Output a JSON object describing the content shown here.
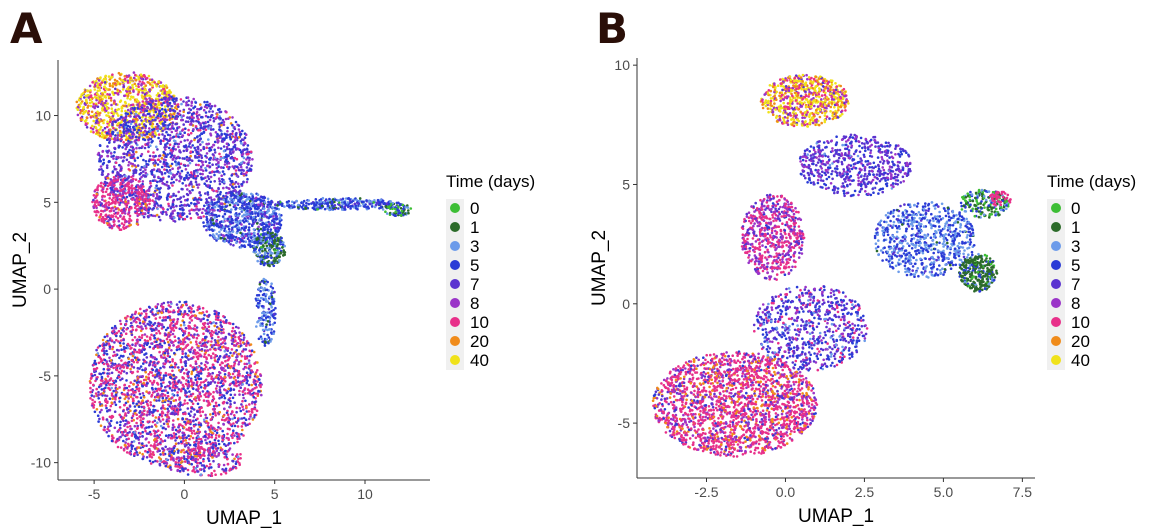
{
  "panels": {
    "a": {
      "label": "A"
    },
    "b": {
      "label": "B"
    }
  },
  "chart_data": [
    {
      "type": "scatter",
      "title": "",
      "xlabel": "UMAP_1",
      "ylabel": "UMAP_2",
      "xlim": [
        -7,
        13.6
      ],
      "ylim": [
        -11,
        13.2
      ],
      "xticks": [
        -5,
        0,
        5,
        10
      ],
      "yticks": [
        -10,
        -5,
        0,
        5,
        10
      ],
      "xtick_labels": [
        "-5",
        "0",
        "5",
        "10"
      ],
      "ytick_labels": [
        "-10",
        "-5",
        "0",
        "5",
        "10"
      ],
      "grid": false,
      "legend_title": "Time (days)",
      "legend_position": "right",
      "series": [
        {
          "name": "0",
          "color": "#3dbe35"
        },
        {
          "name": "1",
          "color": "#2c6b2a"
        },
        {
          "name": "3",
          "color": "#6c9bea"
        },
        {
          "name": "5",
          "color": "#2a3bd6"
        },
        {
          "name": "7",
          "color": "#5a33d0"
        },
        {
          "name": "8",
          "color": "#9a34c8"
        },
        {
          "name": "10",
          "color": "#e8308a"
        },
        {
          "name": "20",
          "color": "#f08b1a"
        },
        {
          "name": "40",
          "color": "#f0e21a"
        }
      ],
      "clusters": [
        {
          "cx": -0.5,
          "cy": -5.5,
          "rx": 4.8,
          "ry": 4.8,
          "n": 2600,
          "mix": [
            0,
            0,
            0.02,
            0.2,
            0.15,
            0.13,
            0.42,
            0.08,
            0
          ]
        },
        {
          "cx": 1.0,
          "cy": -9.8,
          "rx": 2.2,
          "ry": 1.0,
          "n": 200,
          "mix": [
            0,
            0,
            0.02,
            0.2,
            0.15,
            0.13,
            0.45,
            0.05,
            0
          ]
        },
        {
          "cx": -3.2,
          "cy": 10.5,
          "rx": 2.8,
          "ry": 2.0,
          "n": 900,
          "mix": [
            0,
            0,
            0,
            0,
            0.03,
            0.17,
            0.12,
            0.2,
            0.48
          ]
        },
        {
          "cx": -0.5,
          "cy": 7.5,
          "rx": 4.3,
          "ry": 3.6,
          "n": 1700,
          "mix": [
            0,
            0,
            0.05,
            0.3,
            0.3,
            0.25,
            0.07,
            0.03,
            0
          ]
        },
        {
          "cx": -3.5,
          "cy": 5.0,
          "rx": 1.6,
          "ry": 1.6,
          "n": 400,
          "mix": [
            0,
            0,
            0,
            0.05,
            0.1,
            0.2,
            0.6,
            0.05,
            0
          ]
        },
        {
          "cx": 3.2,
          "cy": 4.0,
          "rx": 2.2,
          "ry": 1.6,
          "n": 700,
          "mix": [
            0,
            0.03,
            0.25,
            0.55,
            0.1,
            0.07,
            0,
            0,
            0
          ]
        },
        {
          "cx": 4.7,
          "cy": 2.3,
          "rx": 0.9,
          "ry": 1.0,
          "n": 250,
          "mix": [
            0.05,
            0.45,
            0.2,
            0.3,
            0,
            0,
            0,
            0,
            0
          ]
        },
        {
          "cx": 8.5,
          "cy": 4.9,
          "rx": 3.5,
          "ry": 0.35,
          "n": 300,
          "mix": [
            0.03,
            0.05,
            0.25,
            0.6,
            0.07,
            0,
            0,
            0,
            0
          ]
        },
        {
          "cx": 11.8,
          "cy": 4.6,
          "rx": 0.8,
          "ry": 0.4,
          "n": 80,
          "mix": [
            0.35,
            0.2,
            0.2,
            0.25,
            0,
            0,
            0,
            0,
            0
          ]
        },
        {
          "cx": 4.5,
          "cy": -1.3,
          "rx": 0.6,
          "ry": 2.0,
          "n": 160,
          "mix": [
            0,
            0.05,
            0.35,
            0.55,
            0.05,
            0,
            0,
            0,
            0
          ]
        }
      ]
    },
    {
      "type": "scatter",
      "title": "",
      "xlabel": "UMAP_1",
      "ylabel": "UMAP_2",
      "xlim": [
        -4.7,
        7.9
      ],
      "ylim": [
        -7.3,
        10.3
      ],
      "xticks": [
        -2.5,
        0,
        2.5,
        5,
        7.5
      ],
      "yticks": [
        -5,
        0,
        5,
        10
      ],
      "xtick_labels": [
        "-2.5",
        "0.0",
        "2.5",
        "5.0",
        "7.5"
      ],
      "ytick_labels": [
        "-5",
        "0",
        "5",
        "10"
      ],
      "grid": false,
      "legend_title": "Time (days)",
      "legend_position": "right",
      "series": [
        {
          "name": "0",
          "color": "#3dbe35"
        },
        {
          "name": "1",
          "color": "#2c6b2a"
        },
        {
          "name": "3",
          "color": "#6c9bea"
        },
        {
          "name": "5",
          "color": "#2a3bd6"
        },
        {
          "name": "7",
          "color": "#5a33d0"
        },
        {
          "name": "8",
          "color": "#9a34c8"
        },
        {
          "name": "10",
          "color": "#e8308a"
        },
        {
          "name": "20",
          "color": "#f08b1a"
        },
        {
          "name": "40",
          "color": "#f0e21a"
        }
      ],
      "clusters": [
        {
          "cx": -1.6,
          "cy": -4.2,
          "rx": 2.6,
          "ry": 2.2,
          "n": 2000,
          "mix": [
            0,
            0,
            0,
            0.05,
            0.1,
            0.15,
            0.55,
            0.15,
            0
          ]
        },
        {
          "cx": 0.8,
          "cy": -1.0,
          "rx": 1.8,
          "ry": 1.8,
          "n": 700,
          "mix": [
            0,
            0,
            0.1,
            0.3,
            0.35,
            0.15,
            0.1,
            0,
            0
          ]
        },
        {
          "cx": -0.4,
          "cy": 2.8,
          "rx": 1.0,
          "ry": 1.8,
          "n": 600,
          "mix": [
            0,
            0,
            0,
            0.05,
            0.15,
            0.3,
            0.5,
            0,
            0
          ]
        },
        {
          "cx": 0.6,
          "cy": 8.5,
          "rx": 1.4,
          "ry": 1.1,
          "n": 700,
          "mix": [
            0,
            0,
            0,
            0,
            0.05,
            0.15,
            0.2,
            0.2,
            0.4
          ]
        },
        {
          "cx": 2.2,
          "cy": 5.8,
          "rx": 1.8,
          "ry": 1.3,
          "n": 600,
          "mix": [
            0,
            0,
            0.05,
            0.3,
            0.4,
            0.25,
            0,
            0,
            0
          ]
        },
        {
          "cx": 4.4,
          "cy": 2.7,
          "rx": 1.6,
          "ry": 1.6,
          "n": 700,
          "mix": [
            0,
            0.02,
            0.45,
            0.45,
            0.08,
            0,
            0,
            0,
            0
          ]
        },
        {
          "cx": 6.1,
          "cy": 1.3,
          "rx": 0.6,
          "ry": 0.8,
          "n": 300,
          "mix": [
            0.05,
            0.65,
            0.1,
            0.2,
            0,
            0,
            0,
            0,
            0
          ]
        },
        {
          "cx": 6.3,
          "cy": 4.2,
          "rx": 0.8,
          "ry": 0.6,
          "n": 200,
          "mix": [
            0.3,
            0.3,
            0.15,
            0.25,
            0,
            0,
            0,
            0,
            0
          ]
        },
        {
          "cx": 6.8,
          "cy": 4.4,
          "rx": 0.35,
          "ry": 0.3,
          "n": 40,
          "mix": [
            0,
            0,
            0,
            0,
            0,
            0,
            1,
            0,
            0
          ]
        }
      ]
    }
  ]
}
